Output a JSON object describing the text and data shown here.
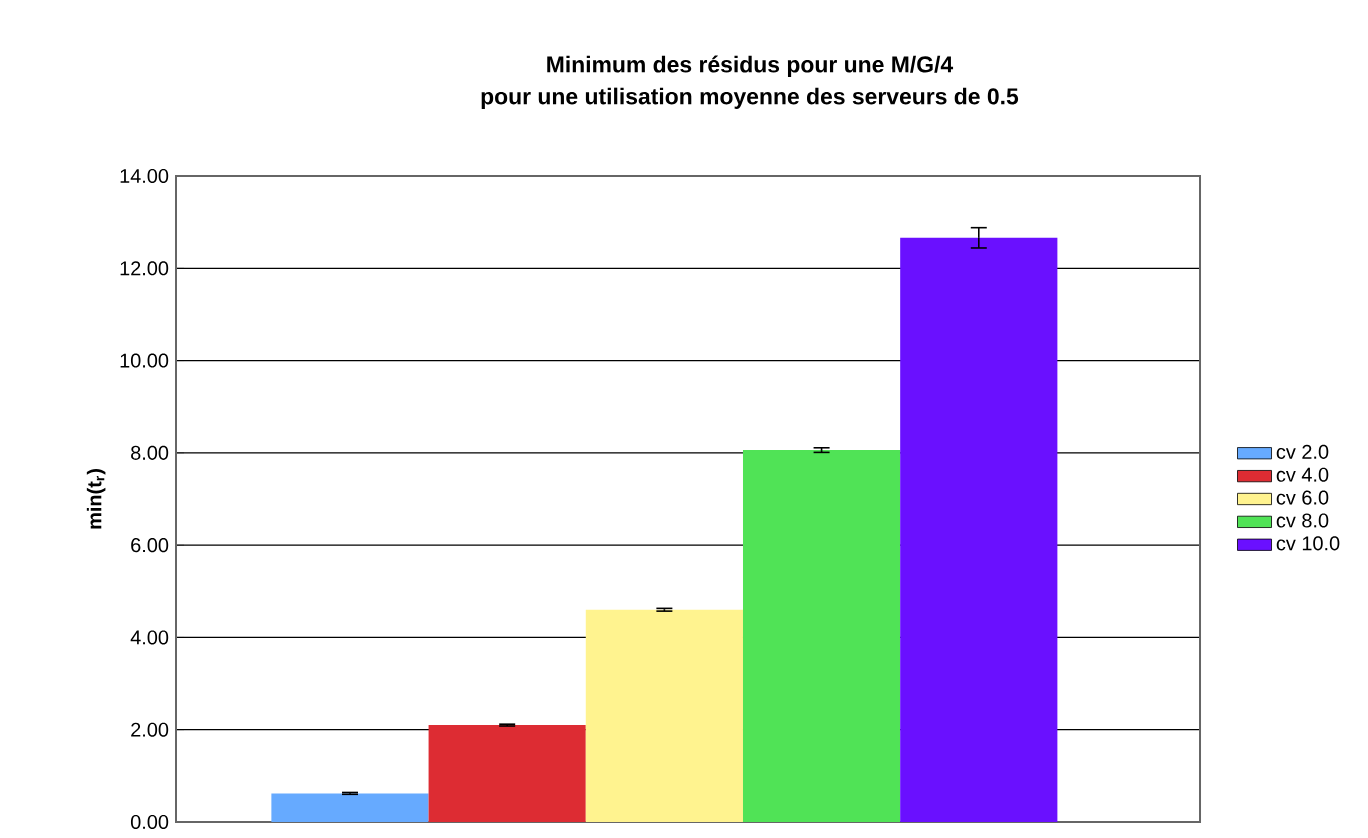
{
  "chart_data": {
    "type": "bar",
    "title": "Minimum des résidus pour une M/G/4\npour une utilisation moyenne des serveurs de 0.5",
    "ylabel": "min(t$_{r}$)",
    "categories": [
      null
    ],
    "series": [
      {
        "name": "cv 2.0",
        "color": "#66aaff",
        "values": [
          0.62
        ],
        "errors": [
          0.02
        ]
      },
      {
        "name": "cv 4.0",
        "color": "#dd2c33",
        "values": [
          2.1
        ],
        "errors": [
          0.02
        ]
      },
      {
        "name": "cv 6.0",
        "color": "#fff38f",
        "values": [
          4.6
        ],
        "errors": [
          0.03
        ]
      },
      {
        "name": "cv 8.0",
        "color": "#50e356",
        "values": [
          8.06
        ],
        "errors": [
          0.05
        ]
      },
      {
        "name": "cv 10.0",
        "color": "#6a10ff",
        "values": [
          12.66
        ],
        "errors": [
          0.22
        ]
      }
    ],
    "ylim": [
      0,
      14
    ],
    "yticks": [
      {
        "value": 0,
        "label": "0.00"
      },
      {
        "value": 2,
        "label": "2.00"
      },
      {
        "value": 4,
        "label": "4.00"
      },
      {
        "value": 6,
        "label": "6.00"
      },
      {
        "value": 8,
        "label": "8.00"
      },
      {
        "value": 10,
        "label": "10.00"
      },
      {
        "value": 12,
        "label": "12.00"
      },
      {
        "value": 14,
        "label": "14.00"
      }
    ],
    "grid": "y",
    "legend": "right"
  }
}
